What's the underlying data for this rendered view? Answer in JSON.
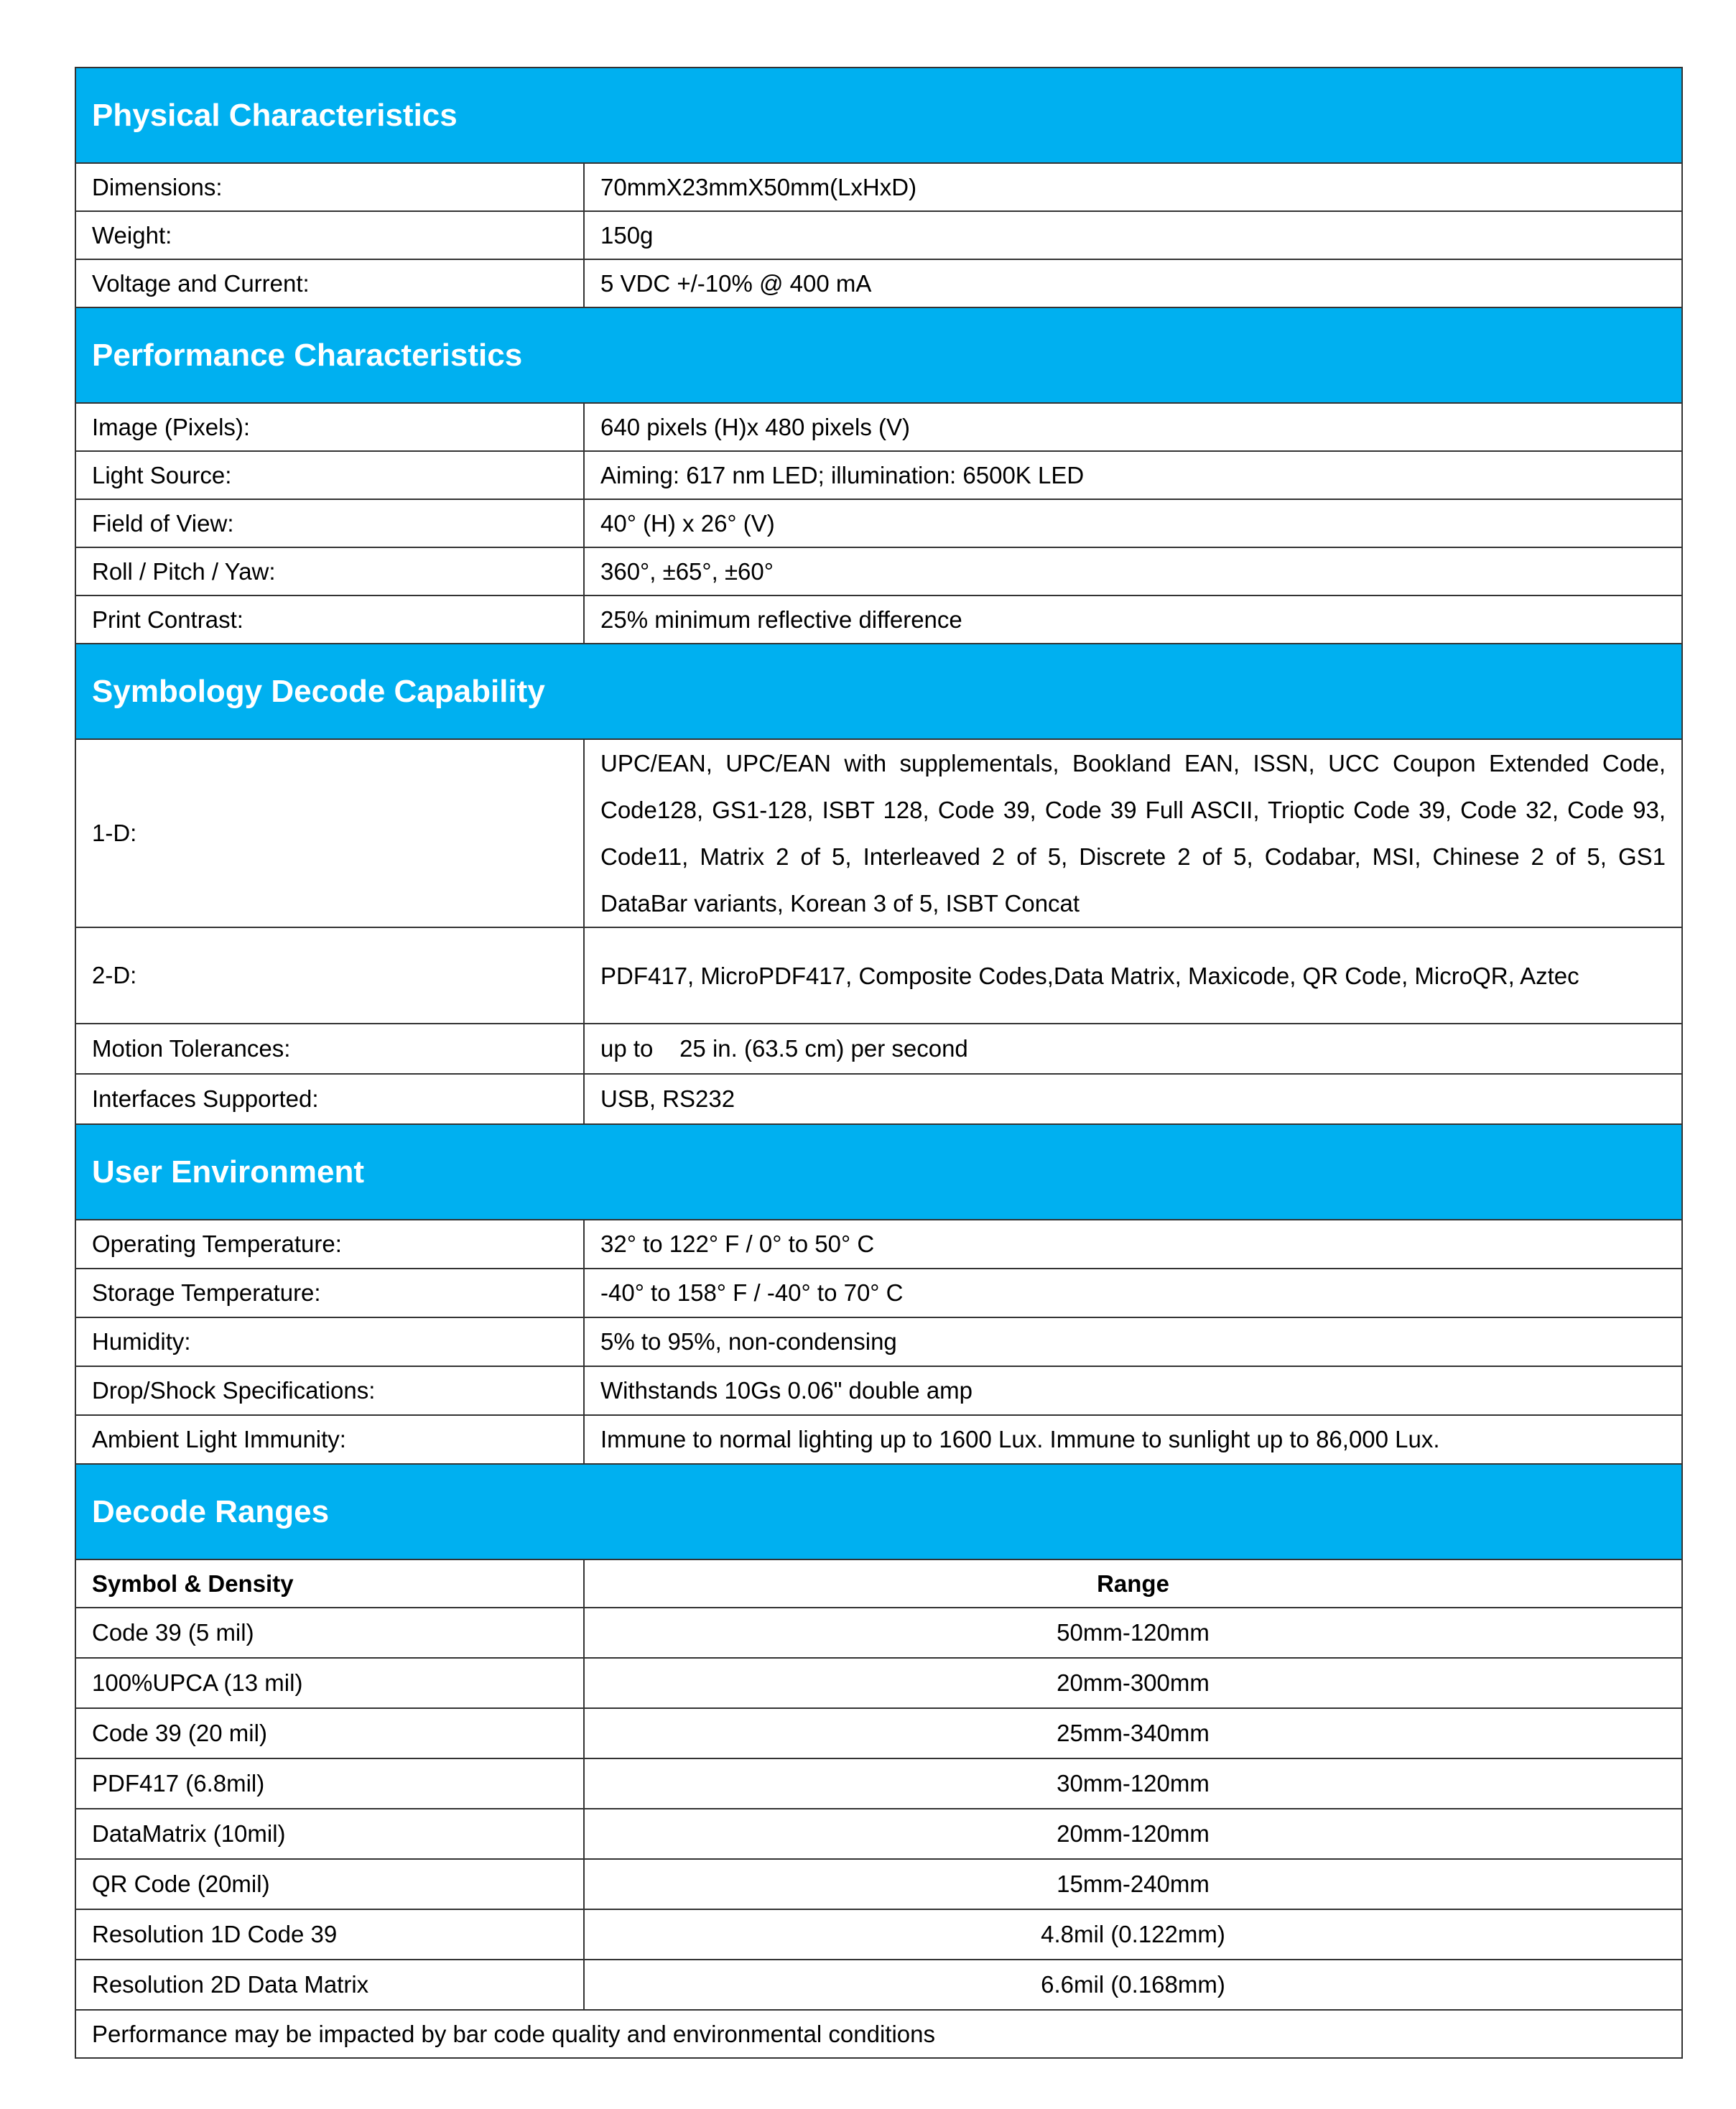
{
  "sections": {
    "physical": {
      "title": "Physical Characteristics",
      "rows": [
        {
          "label": "Dimensions:",
          "value": "70mmX23mmX50mm(LxHxD)"
        },
        {
          "label": "Weight:",
          "value": "150g"
        },
        {
          "label": "Voltage and Current:",
          "value": "5 VDC +/-10% @ 400 mA"
        }
      ]
    },
    "performance": {
      "title": "Performance Characteristics",
      "rows": [
        {
          "label": "Image (Pixels):",
          "value": "640 pixels (H)x 480 pixels (V)"
        },
        {
          "label": "Light Source:",
          "value": "Aiming: 617 nm LED; illumination: 6500K LED"
        },
        {
          "label": "Field of View:",
          "value": "40° (H) x 26° (V)"
        },
        {
          "label": "Roll / Pitch / Yaw:",
          "value": "360°, ±65°, ±60°"
        },
        {
          "label": "Print Contrast:",
          "value": "25% minimum reflective difference"
        }
      ]
    },
    "symbology": {
      "title": "Symbology Decode Capability",
      "rows": [
        {
          "label": "1-D:",
          "value": "UPC/EAN, UPC/EAN with supplementals, Bookland EAN, ISSN, UCC Coupon Extended Code, Code128, GS1-128, ISBT 128, Code 39, Code 39 Full ASCII, Trioptic Code 39, Code 32, Code 93, Code11, Matrix 2 of 5, Interleaved 2 of 5, Discrete 2 of 5, Codabar, MSI, Chinese 2 of 5, GS1 DataBar variants, Korean 3 of 5, ISBT Concat"
        },
        {
          "label": "2-D:",
          "value": "PDF417, MicroPDF417, Composite Codes,Data Matrix, Maxicode, QR Code, MicroQR, Aztec"
        },
        {
          "label": "Motion Tolerances:",
          "value": "up to    25 in. (63.5 cm) per second"
        },
        {
          "label": "Interfaces Supported:",
          "value": "USB, RS232"
        }
      ]
    },
    "environment": {
      "title": "User Environment",
      "rows": [
        {
          "label": "Operating Temperature:",
          "value": "32° to 122° F / 0° to 50° C"
        },
        {
          "label": "Storage Temperature:",
          "value": "-40° to 158° F / -40° to 70° C"
        },
        {
          "label": "Humidity:",
          "value": "5% to 95%, non-condensing"
        },
        {
          "label": "Drop/Shock Specifications:",
          "value": "Withstands 10Gs 0.06\" double amp"
        },
        {
          "label": "Ambient Light Immunity:",
          "value": "Immune to normal lighting up to 1600 Lux. Immune to sunlight up to 86,000 Lux."
        }
      ]
    },
    "decode": {
      "title": "Decode Ranges",
      "columns": [
        "Symbol & Density",
        "Range"
      ],
      "rows": [
        {
          "label": "Code 39 (5 mil)",
          "value": "50mm-120mm"
        },
        {
          "label": "100%UPCA (13 mil)",
          "value": "20mm-300mm"
        },
        {
          "label": "Code 39 (20 mil)",
          "value": "25mm-340mm"
        },
        {
          "label": "PDF417 (6.8mil)",
          "value": "30mm-120mm"
        },
        {
          "label": "DataMatrix (10mil)",
          "value": "20mm-120mm"
        },
        {
          "label": "QR Code (20mil)",
          "value": "15mm-240mm"
        },
        {
          "label": "Resolution 1D Code 39",
          "value": "4.8mil (0.122mm)"
        },
        {
          "label": "Resolution 2D Data Matrix",
          "value": "6.6mil (0.168mm)"
        }
      ],
      "footnote": "Performance may be impacted by bar code quality and environmental conditions"
    }
  },
  "colors": {
    "header_bg": "#00b0f0",
    "header_text": "#ffffff",
    "border": "#333333"
  }
}
